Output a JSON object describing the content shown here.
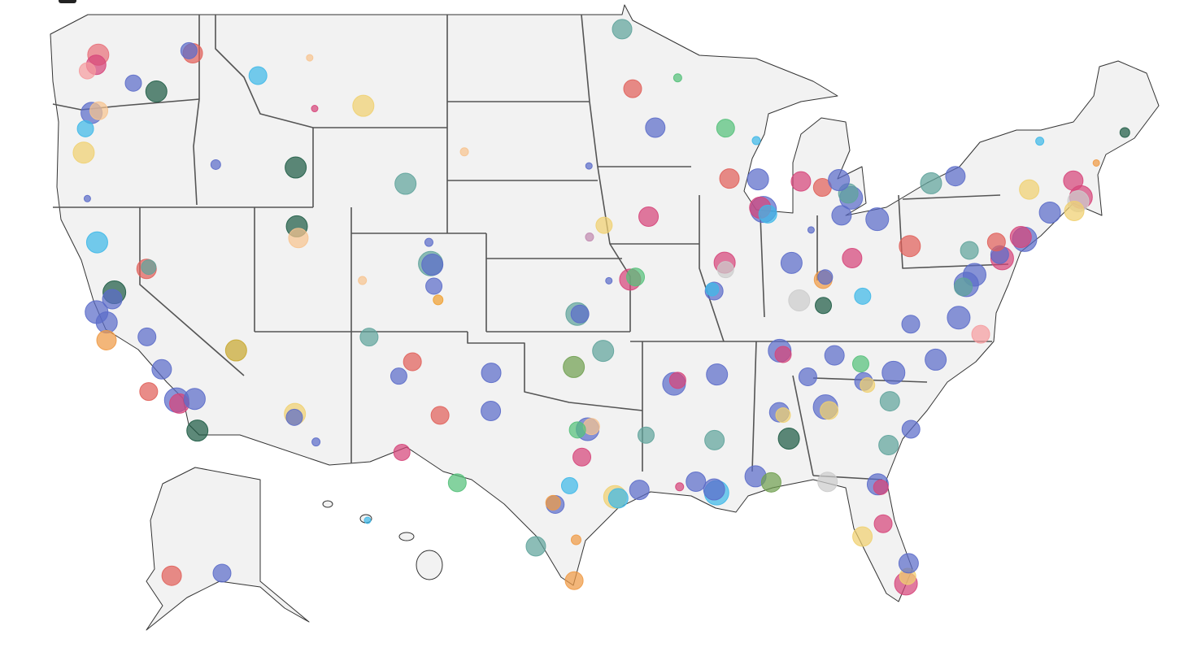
{
  "chart_data": {
    "type": "bubble_map",
    "points": [
      {
        "lon": -122.33,
        "lat": 47.61,
        "size": 13,
        "color": "#e8707a"
      },
      {
        "lon": -122.44,
        "lat": 47.25,
        "size": 12,
        "color": "#d6457a"
      },
      {
        "lon": -122.9,
        "lat": 47.04,
        "size": 10,
        "color": "#f59ca0"
      },
      {
        "lon": -117.4,
        "lat": 47.66,
        "size": 12,
        "color": "#e0605a"
      },
      {
        "lon": -117.6,
        "lat": 47.75,
        "size": 10,
        "color": "#5b6cc9"
      },
      {
        "lon": -119.3,
        "lat": 46.3,
        "size": 13,
        "color": "#1e5c45"
      },
      {
        "lon": -120.5,
        "lat": 46.6,
        "size": 10,
        "color": "#5b6cc9"
      },
      {
        "lon": -122.68,
        "lat": 45.52,
        "size": 13,
        "color": "#5b6cc9"
      },
      {
        "lon": -122.3,
        "lat": 45.6,
        "size": 11,
        "color": "#f7c38f"
      },
      {
        "lon": -123.0,
        "lat": 44.94,
        "size": 10,
        "color": "#3fb8e8"
      },
      {
        "lon": -123.09,
        "lat": 44.05,
        "size": 13,
        "color": "#f0d070"
      },
      {
        "lon": -122.9,
        "lat": 42.3,
        "size": 4,
        "color": "#5b6cc9"
      },
      {
        "lon": -116.2,
        "lat": 43.6,
        "size": 6,
        "color": "#5b6cc9"
      },
      {
        "lon": -114.0,
        "lat": 46.87,
        "size": 11,
        "color": "#3fb8e8"
      },
      {
        "lon": -108.5,
        "lat": 45.78,
        "size": 13,
        "color": "#f0d070"
      },
      {
        "lon": -111.3,
        "lat": 47.5,
        "size": 4,
        "color": "#f7c38f"
      },
      {
        "lon": -111.04,
        "lat": 45.68,
        "size": 4,
        "color": "#d6457a"
      },
      {
        "lon": -112.03,
        "lat": 43.49,
        "size": 13,
        "color": "#1e5c45"
      },
      {
        "lon": -111.97,
        "lat": 41.22,
        "size": 13,
        "color": "#1e5c45"
      },
      {
        "lon": -111.89,
        "lat": 40.76,
        "size": 12,
        "color": "#f7c38f"
      },
      {
        "lon": -106.3,
        "lat": 42.87,
        "size": 13,
        "color": "#5fa39b"
      },
      {
        "lon": -104.99,
        "lat": 39.74,
        "size": 15,
        "color": "#5fa39b"
      },
      {
        "lon": -104.9,
        "lat": 39.7,
        "size": 13,
        "color": "#5b6cc9"
      },
      {
        "lon": -104.82,
        "lat": 38.83,
        "size": 10,
        "color": "#5b6cc9"
      },
      {
        "lon": -104.6,
        "lat": 38.27,
        "size": 6,
        "color": "#f0a030"
      },
      {
        "lon": -105.08,
        "lat": 40.59,
        "size": 5,
        "color": "#5b6cc9"
      },
      {
        "lon": -108.55,
        "lat": 39.06,
        "size": 5,
        "color": "#f7c38f"
      },
      {
        "lon": -105.94,
        "lat": 35.69,
        "size": 11,
        "color": "#e0605a"
      },
      {
        "lon": -106.65,
        "lat": 35.08,
        "size": 10,
        "color": "#5b6cc9"
      },
      {
        "lon": -108.2,
        "lat": 36.73,
        "size": 11,
        "color": "#5fa39b"
      },
      {
        "lon": -104.5,
        "lat": 33.39,
        "size": 11,
        "color": "#e0605a"
      },
      {
        "lon": -106.49,
        "lat": 31.76,
        "size": 10,
        "color": "#d6457a"
      },
      {
        "lon": -112.07,
        "lat": 33.45,
        "size": 13,
        "color": "#f0d070"
      },
      {
        "lon": -112.1,
        "lat": 33.3,
        "size": 10,
        "color": "#5b6cc9"
      },
      {
        "lon": -110.97,
        "lat": 32.22,
        "size": 5,
        "color": "#5b6cc9"
      },
      {
        "lon": -115.14,
        "lat": 36.17,
        "size": 13,
        "color": "#c8a830"
      },
      {
        "lon": -119.81,
        "lat": 39.53,
        "size": 12,
        "color": "#e0605a"
      },
      {
        "lon": -119.7,
        "lat": 39.6,
        "size": 9,
        "color": "#5fa39b"
      },
      {
        "lon": -121.49,
        "lat": 38.58,
        "size": 14,
        "color": "#1e5c45"
      },
      {
        "lon": -121.6,
        "lat": 38.3,
        "size": 12,
        "color": "#5b6cc9"
      },
      {
        "lon": -122.42,
        "lat": 37.77,
        "size": 14,
        "color": "#5b6cc9"
      },
      {
        "lon": -121.89,
        "lat": 37.34,
        "size": 13,
        "color": "#5b6cc9"
      },
      {
        "lon": -121.9,
        "lat": 36.6,
        "size": 12,
        "color": "#ef9a45"
      },
      {
        "lon": -119.79,
        "lat": 36.74,
        "size": 11,
        "color": "#5b6cc9"
      },
      {
        "lon": -119.02,
        "lat": 35.37,
        "size": 12,
        "color": "#5b6cc9"
      },
      {
        "lon": -119.7,
        "lat": 34.42,
        "size": 11,
        "color": "#e0605a"
      },
      {
        "lon": -118.24,
        "lat": 34.05,
        "size": 15,
        "color": "#5b6cc9"
      },
      {
        "lon": -118.1,
        "lat": 33.9,
        "size": 12,
        "color": "#d6457a"
      },
      {
        "lon": -117.3,
        "lat": 34.1,
        "size": 13,
        "color": "#5b6cc9"
      },
      {
        "lon": -117.16,
        "lat": 32.72,
        "size": 13,
        "color": "#1e5c45"
      },
      {
        "lon": -122.39,
        "lat": 40.59,
        "size": 13,
        "color": "#3fb8e8"
      },
      {
        "lon": -95.0,
        "lat": 48.5,
        "size": 12,
        "color": "#5fa39b"
      },
      {
        "lon": -94.45,
        "lat": 46.4,
        "size": 11,
        "color": "#e0605a"
      },
      {
        "lon": -93.27,
        "lat": 44.98,
        "size": 12,
        "color": "#5b6cc9"
      },
      {
        "lon": -92.1,
        "lat": 46.79,
        "size": 5,
        "color": "#55c07a"
      },
      {
        "lon": -96.73,
        "lat": 43.55,
        "size": 4,
        "color": "#5b6cc9"
      },
      {
        "lon": -103.23,
        "lat": 44.08,
        "size": 5,
        "color": "#f7c38f"
      },
      {
        "lon": -95.94,
        "lat": 41.26,
        "size": 10,
        "color": "#f0d070"
      },
      {
        "lon": -96.7,
        "lat": 40.8,
        "size": 5,
        "color": "#c08ab0"
      },
      {
        "lon": -93.62,
        "lat": 41.6,
        "size": 12,
        "color": "#d6457a"
      },
      {
        "lon": -97.34,
        "lat": 37.69,
        "size": 14,
        "color": "#5fa39b"
      },
      {
        "lon": -97.2,
        "lat": 37.69,
        "size": 11,
        "color": "#5b6cc9"
      },
      {
        "lon": -94.58,
        "lat": 39.1,
        "size": 13,
        "color": "#d6457a"
      },
      {
        "lon": -94.3,
        "lat": 39.2,
        "size": 11,
        "color": "#55c07a"
      },
      {
        "lon": -95.69,
        "lat": 39.05,
        "size": 4,
        "color": "#5b6cc9"
      },
      {
        "lon": -97.52,
        "lat": 35.47,
        "size": 13,
        "color": "#70a050"
      },
      {
        "lon": -95.99,
        "lat": 36.15,
        "size": 13,
        "color": "#5fa39b"
      },
      {
        "lon": -96.8,
        "lat": 32.78,
        "size": 14,
        "color": "#5b6cc9"
      },
      {
        "lon": -96.6,
        "lat": 32.9,
        "size": 10,
        "color": "#f7c38f"
      },
      {
        "lon": -97.33,
        "lat": 32.75,
        "size": 10,
        "color": "#55c07a"
      },
      {
        "lon": -95.37,
        "lat": 29.76,
        "size": 14,
        "color": "#f0d070"
      },
      {
        "lon": -95.2,
        "lat": 29.7,
        "size": 12,
        "color": "#3fb8e8"
      },
      {
        "lon": -98.49,
        "lat": 29.42,
        "size": 11,
        "color": "#5b6cc9"
      },
      {
        "lon": -98.6,
        "lat": 29.5,
        "size": 9,
        "color": "#ef9a45"
      },
      {
        "lon": -97.74,
        "lat": 30.27,
        "size": 10,
        "color": "#3fb8e8"
      },
      {
        "lon": -101.85,
        "lat": 33.58,
        "size": 12,
        "color": "#5b6cc9"
      },
      {
        "lon": -101.83,
        "lat": 35.22,
        "size": 12,
        "color": "#5b6cc9"
      },
      {
        "lon": -103.6,
        "lat": 30.4,
        "size": 11,
        "color": "#55c07a"
      },
      {
        "lon": -99.5,
        "lat": 27.5,
        "size": 12,
        "color": "#5fa39b"
      },
      {
        "lon": -97.4,
        "lat": 27.8,
        "size": 6,
        "color": "#ef9a45"
      },
      {
        "lon": -97.5,
        "lat": 25.9,
        "size": 11,
        "color": "#ef9a45"
      },
      {
        "lon": -97.1,
        "lat": 31.55,
        "size": 11,
        "color": "#d6457a"
      },
      {
        "lon": -94.1,
        "lat": 30.08,
        "size": 12,
        "color": "#5b6cc9"
      },
      {
        "lon": -93.75,
        "lat": 32.52,
        "size": 10,
        "color": "#5fa39b"
      },
      {
        "lon": -90.07,
        "lat": 29.95,
        "size": 15,
        "color": "#3fb8e8"
      },
      {
        "lon": -90.2,
        "lat": 30.1,
        "size": 13,
        "color": "#5b6cc9"
      },
      {
        "lon": -91.15,
        "lat": 30.45,
        "size": 12,
        "color": "#5b6cc9"
      },
      {
        "lon": -92.0,
        "lat": 30.22,
        "size": 5,
        "color": "#d6457a"
      },
      {
        "lon": -90.18,
        "lat": 32.3,
        "size": 12,
        "color": "#5fa39b"
      },
      {
        "lon": -90.05,
        "lat": 35.15,
        "size": 13,
        "color": "#5b6cc9"
      },
      {
        "lon": -92.29,
        "lat": 34.75,
        "size": 14,
        "color": "#5b6cc9"
      },
      {
        "lon": -92.1,
        "lat": 34.9,
        "size": 10,
        "color": "#d6457a"
      },
      {
        "lon": -86.78,
        "lat": 36.16,
        "size": 14,
        "color": "#5b6cc9"
      },
      {
        "lon": -86.6,
        "lat": 36.0,
        "size": 10,
        "color": "#d6457a"
      },
      {
        "lon": -83.92,
        "lat": 35.96,
        "size": 12,
        "color": "#5b6cc9"
      },
      {
        "lon": -85.31,
        "lat": 35.05,
        "size": 11,
        "color": "#5b6cc9"
      },
      {
        "lon": -86.8,
        "lat": 33.52,
        "size": 12,
        "color": "#5b6cc9"
      },
      {
        "lon": -86.6,
        "lat": 33.4,
        "size": 9,
        "color": "#f0d070"
      },
      {
        "lon": -86.3,
        "lat": 32.37,
        "size": 13,
        "color": "#1e5c45"
      },
      {
        "lon": -88.04,
        "lat": 30.69,
        "size": 13,
        "color": "#5b6cc9"
      },
      {
        "lon": -87.22,
        "lat": 30.42,
        "size": 12,
        "color": "#70a050"
      },
      {
        "lon": -84.39,
        "lat": 33.75,
        "size": 15,
        "color": "#5b6cc9"
      },
      {
        "lon": -84.2,
        "lat": 33.6,
        "size": 11,
        "color": "#f0d070"
      },
      {
        "lon": -81.1,
        "lat": 32.08,
        "size": 12,
        "color": "#5fa39b"
      },
      {
        "lon": -81.66,
        "lat": 30.33,
        "size": 13,
        "color": "#5b6cc9"
      },
      {
        "lon": -81.5,
        "lat": 30.2,
        "size": 9,
        "color": "#d6457a"
      },
      {
        "lon": -84.28,
        "lat": 30.44,
        "size": 12,
        "color": "#cccccc"
      },
      {
        "lon": -81.38,
        "lat": 28.54,
        "size": 11,
        "color": "#d6457a"
      },
      {
        "lon": -82.46,
        "lat": 27.95,
        "size": 12,
        "color": "#f0d070"
      },
      {
        "lon": -80.19,
        "lat": 25.76,
        "size": 14,
        "color": "#d6457a"
      },
      {
        "lon": -80.1,
        "lat": 26.1,
        "size": 10,
        "color": "#f0d070"
      },
      {
        "lon": -80.05,
        "lat": 26.71,
        "size": 12,
        "color": "#5b6cc9"
      },
      {
        "lon": -80.84,
        "lat": 35.23,
        "size": 14,
        "color": "#5b6cc9"
      },
      {
        "lon": -78.64,
        "lat": 35.78,
        "size": 13,
        "color": "#5b6cc9"
      },
      {
        "lon": -81.03,
        "lat": 34.0,
        "size": 12,
        "color": "#5fa39b"
      },
      {
        "lon": -79.93,
        "lat": 32.78,
        "size": 11,
        "color": "#5b6cc9"
      },
      {
        "lon": -82.4,
        "lat": 34.85,
        "size": 11,
        "color": "#5b6cc9"
      },
      {
        "lon": -82.2,
        "lat": 34.7,
        "size": 9,
        "color": "#f0d070"
      },
      {
        "lon": -82.55,
        "lat": 35.6,
        "size": 10,
        "color": "#55c07a"
      },
      {
        "lon": -85.76,
        "lat": 38.25,
        "size": 13,
        "color": "#cccccc"
      },
      {
        "lon": -84.5,
        "lat": 38.04,
        "size": 10,
        "color": "#1e5c45"
      },
      {
        "lon": -84.51,
        "lat": 39.1,
        "size": 11,
        "color": "#ef9a45"
      },
      {
        "lon": -84.4,
        "lat": 39.2,
        "size": 9,
        "color": "#5b6cc9"
      },
      {
        "lon": -83.0,
        "lat": 39.96,
        "size": 12,
        "color": "#d6457a"
      },
      {
        "lon": -81.69,
        "lat": 41.5,
        "size": 14,
        "color": "#5b6cc9"
      },
      {
        "lon": -79.99,
        "lat": 40.44,
        "size": 13,
        "color": "#e0605a"
      },
      {
        "lon": -86.16,
        "lat": 39.77,
        "size": 13,
        "color": "#5b6cc9"
      },
      {
        "lon": -90.2,
        "lat": 38.63,
        "size": 11,
        "color": "#5b6cc9"
      },
      {
        "lon": -90.3,
        "lat": 38.7,
        "size": 8,
        "color": "#3fb8e8"
      },
      {
        "lon": -89.65,
        "lat": 39.78,
        "size": 13,
        "color": "#d6457a"
      },
      {
        "lon": -89.6,
        "lat": 39.5,
        "size": 10,
        "color": "#cccccc"
      },
      {
        "lon": -87.63,
        "lat": 41.88,
        "size": 16,
        "color": "#5b6cc9"
      },
      {
        "lon": -87.8,
        "lat": 41.95,
        "size": 13,
        "color": "#d6457a"
      },
      {
        "lon": -87.4,
        "lat": 41.7,
        "size": 11,
        "color": "#3fb8e8"
      },
      {
        "lon": -87.91,
        "lat": 43.04,
        "size": 13,
        "color": "#5b6cc9"
      },
      {
        "lon": -89.4,
        "lat": 43.07,
        "size": 12,
        "color": "#e0605a"
      },
      {
        "lon": -88.0,
        "lat": 44.5,
        "size": 5,
        "color": "#3fb8e8"
      },
      {
        "lon": -89.6,
        "lat": 44.96,
        "size": 11,
        "color": "#55c07a"
      },
      {
        "lon": -83.05,
        "lat": 42.33,
        "size": 14,
        "color": "#5b6cc9"
      },
      {
        "lon": -83.2,
        "lat": 42.5,
        "size": 12,
        "color": "#5fa39b"
      },
      {
        "lon": -85.67,
        "lat": 42.96,
        "size": 12,
        "color": "#d6457a"
      },
      {
        "lon": -84.55,
        "lat": 42.73,
        "size": 11,
        "color": "#e0605a"
      },
      {
        "lon": -83.69,
        "lat": 43.01,
        "size": 13,
        "color": "#5b6cc9"
      },
      {
        "lon": -85.14,
        "lat": 41.08,
        "size": 4,
        "color": "#5b6cc9"
      },
      {
        "lon": -83.55,
        "lat": 41.65,
        "size": 12,
        "color": "#5b6cc9"
      },
      {
        "lon": -78.88,
        "lat": 42.89,
        "size": 13,
        "color": "#5fa39b"
      },
      {
        "lon": -77.61,
        "lat": 43.16,
        "size": 12,
        "color": "#5b6cc9"
      },
      {
        "lon": -73.76,
        "lat": 42.65,
        "size": 12,
        "color": "#f0d070"
      },
      {
        "lon": -74.0,
        "lat": 40.71,
        "size": 15,
        "color": "#5b6cc9"
      },
      {
        "lon": -74.2,
        "lat": 40.8,
        "size": 13,
        "color": "#d6457a"
      },
      {
        "lon": -75.17,
        "lat": 39.95,
        "size": 14,
        "color": "#d6457a"
      },
      {
        "lon": -75.3,
        "lat": 40.1,
        "size": 11,
        "color": "#5b6cc9"
      },
      {
        "lon": -76.61,
        "lat": 39.29,
        "size": 14,
        "color": "#5b6cc9"
      },
      {
        "lon": -77.04,
        "lat": 38.9,
        "size": 15,
        "color": "#5b6cc9"
      },
      {
        "lon": -77.2,
        "lat": 38.8,
        "size": 11,
        "color": "#5fa39b"
      },
      {
        "lon": -77.44,
        "lat": 37.54,
        "size": 14,
        "color": "#5b6cc9"
      },
      {
        "lon": -76.29,
        "lat": 36.85,
        "size": 11,
        "color": "#f59ca0"
      },
      {
        "lon": -79.94,
        "lat": 37.27,
        "size": 11,
        "color": "#5b6cc9"
      },
      {
        "lon": -82.45,
        "lat": 38.42,
        "size": 10,
        "color": "#3fb8e8"
      },
      {
        "lon": -71.06,
        "lat": 42.36,
        "size": 14,
        "color": "#d6457a"
      },
      {
        "lon": -71.2,
        "lat": 42.2,
        "size": 13,
        "color": "#cccccc"
      },
      {
        "lon": -72.68,
        "lat": 41.76,
        "size": 13,
        "color": "#5b6cc9"
      },
      {
        "lon": -71.41,
        "lat": 41.82,
        "size": 12,
        "color": "#f0d070"
      },
      {
        "lon": -71.46,
        "lat": 42.99,
        "size": 12,
        "color": "#d6457a"
      },
      {
        "lon": -70.26,
        "lat": 43.66,
        "size": 4,
        "color": "#ef9a45"
      },
      {
        "lon": -68.77,
        "lat": 44.8,
        "size": 6,
        "color": "#1e5c45"
      },
      {
        "lon": -73.21,
        "lat": 44.48,
        "size": 5,
        "color": "#3fb8e8"
      },
      {
        "lon": -76.88,
        "lat": 40.27,
        "size": 11,
        "color": "#5fa39b"
      },
      {
        "lon": -75.47,
        "lat": 40.6,
        "size": 11,
        "color": "#e0605a"
      },
      {
        "lon": -161.8,
        "lat": 60.8,
        "size": 12,
        "color": "#e0605a"
      },
      {
        "lon": -149.9,
        "lat": 61.2,
        "size": 11,
        "color": "#5b6cc9"
      },
      {
        "lon": -157.86,
        "lat": 21.31,
        "size": 4,
        "color": "#3fb8e8"
      }
    ]
  }
}
